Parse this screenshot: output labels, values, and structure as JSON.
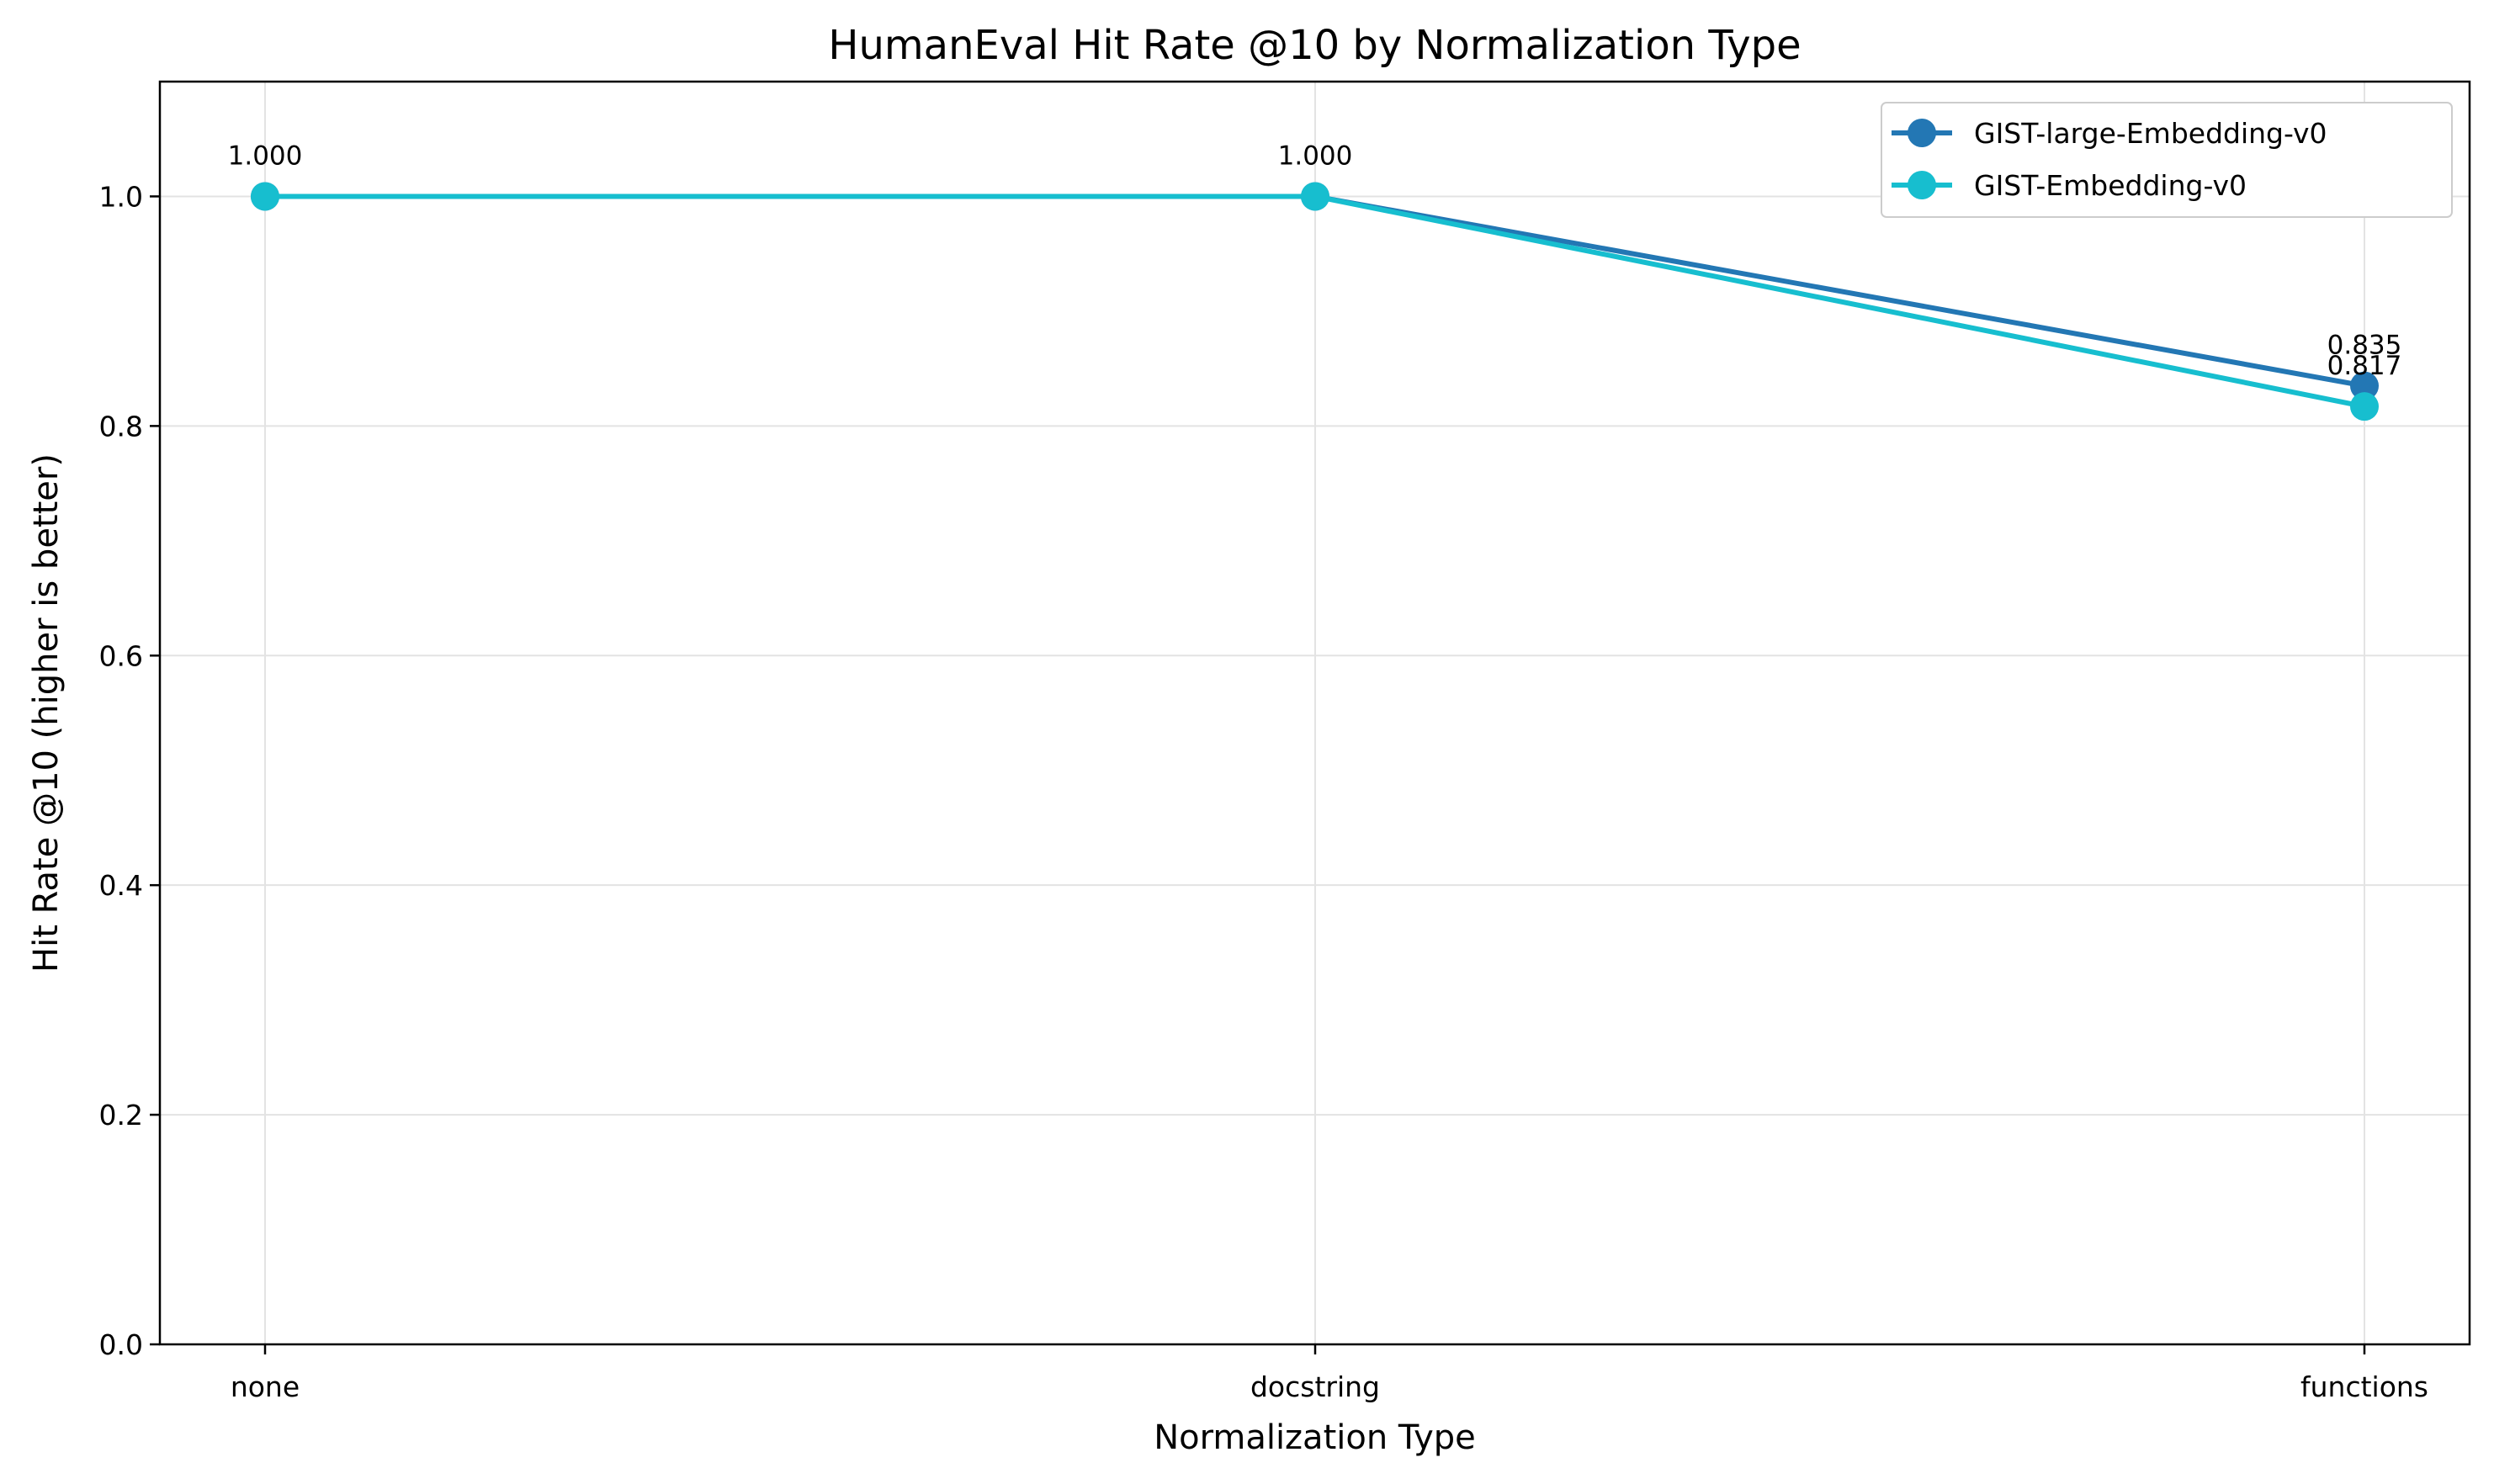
{
  "chart_data": {
    "type": "line",
    "title": "HumanEval Hit Rate @10 by Normalization Type",
    "xlabel": "Normalization Type",
    "ylabel": "Hit Rate @10 (higher is better)",
    "categories": [
      "none",
      "docstring",
      "functions"
    ],
    "ylim": [
      0,
      1.1
    ],
    "yticks": [
      0.0,
      0.2,
      0.4,
      0.6,
      0.8,
      1.0
    ],
    "ytick_labels": [
      "0.0",
      "0.2",
      "0.4",
      "0.6",
      "0.8",
      "1.0"
    ],
    "grid": true,
    "legend_position": "top-right",
    "series": [
      {
        "name": "GIST-large-Embedding-v0",
        "color": "#2377b4",
        "values": [
          1.0,
          1.0,
          0.835
        ],
        "labels": [
          "1.000",
          "1.000",
          "0.835"
        ]
      },
      {
        "name": "GIST-Embedding-v0",
        "color": "#17becf",
        "values": [
          1.0,
          1.0,
          0.817
        ],
        "labels": [
          "",
          "",
          "0.817"
        ]
      }
    ]
  }
}
